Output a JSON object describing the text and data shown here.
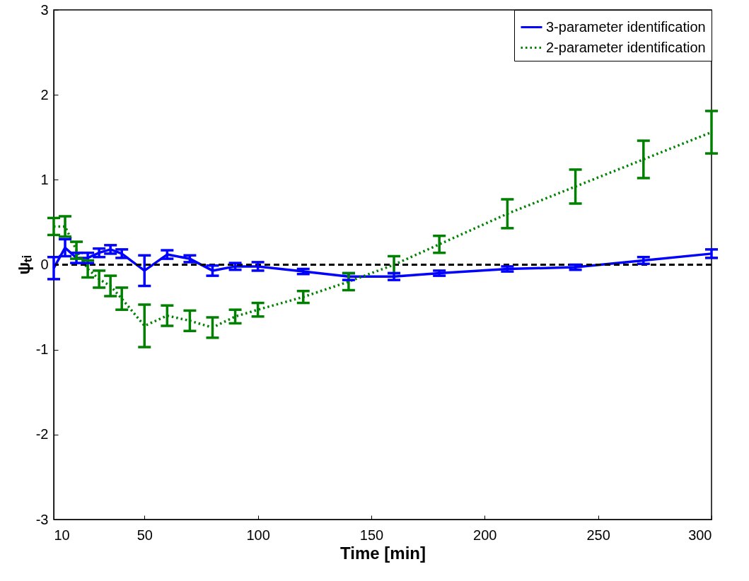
{
  "chart_data": {
    "type": "line",
    "xlabel": "Time [min]",
    "ylabel": "ψₜᵢ",
    "x": [
      10,
      15,
      20,
      25,
      30,
      35,
      40,
      50,
      60,
      70,
      80,
      90,
      100,
      120,
      140,
      160,
      180,
      210,
      240,
      270,
      300
    ],
    "xlim": [
      10,
      300
    ],
    "xticks": [
      10,
      50,
      100,
      150,
      200,
      250,
      300
    ],
    "ylim": [
      -3,
      3
    ],
    "yticks": [
      -3,
      -2,
      -1,
      0,
      1,
      2,
      3
    ],
    "series": [
      {
        "name": "3-parameter identification",
        "color": "#0000ff",
        "line_style": "solid",
        "values": [
          -0.04,
          0.2,
          0.08,
          0.08,
          0.14,
          0.18,
          0.13,
          -0.07,
          0.12,
          0.07,
          -0.07,
          -0.02,
          -0.02,
          -0.08,
          -0.14,
          -0.14,
          -0.1,
          -0.05,
          -0.03,
          0.05,
          0.13
        ],
        "errors": [
          0.13,
          0.1,
          0.06,
          0.06,
          0.05,
          0.05,
          0.05,
          0.18,
          0.05,
          0.04,
          0.06,
          0.04,
          0.05,
          0.03,
          0.04,
          0.04,
          0.03,
          0.03,
          0.03,
          0.04,
          0.05
        ]
      },
      {
        "name": "2-parameter identification",
        "color": "#008000",
        "line_style": "dotted",
        "values": [
          0.45,
          0.45,
          0.17,
          -0.05,
          -0.17,
          -0.25,
          -0.4,
          -0.72,
          -0.6,
          -0.66,
          -0.74,
          -0.61,
          -0.53,
          -0.38,
          -0.2,
          0.0,
          0.24,
          0.6,
          0.92,
          1.24,
          1.56
        ],
        "errors": [
          0.1,
          0.12,
          0.1,
          0.1,
          0.1,
          0.12,
          0.13,
          0.25,
          0.12,
          0.12,
          0.12,
          0.08,
          0.08,
          0.07,
          0.1,
          0.1,
          0.1,
          0.17,
          0.2,
          0.22,
          0.25
        ]
      }
    ],
    "ref_lines": [
      {
        "axis": "y",
        "value": 0,
        "color": "#000000",
        "line_style": "dashed"
      }
    ],
    "legend": "top right",
    "grid": false,
    "marker": "none"
  }
}
